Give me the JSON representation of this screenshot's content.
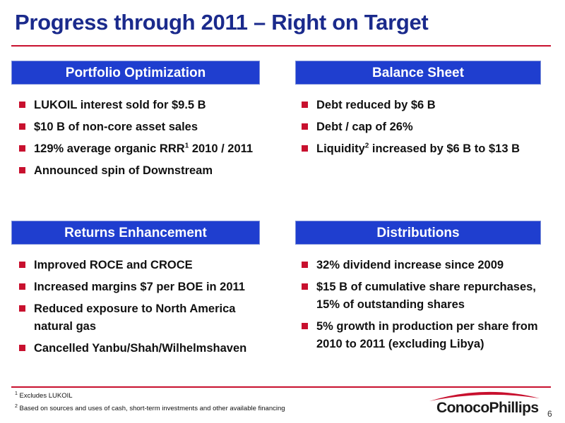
{
  "slide": {
    "title": "Progress through 2011 – Right on Target",
    "page_number": "6",
    "accent_color": "#c8102e",
    "header_color": "#1f3ecf"
  },
  "panels": {
    "portfolio": {
      "header": "Portfolio Optimization",
      "items": [
        {
          "text": "LUKOIL interest sold for $9.5 B"
        },
        {
          "text": "$10 B of non-core asset sales"
        },
        {
          "pre": "129% average organic RRR",
          "sup": "1",
          "post": " 2010 / 2011"
        },
        {
          "text": "Announced spin of Downstream"
        }
      ]
    },
    "balance": {
      "header": "Balance Sheet",
      "items": [
        {
          "text": "Debt reduced by $6 B"
        },
        {
          "text": "Debt / cap of 26%"
        },
        {
          "pre": "Liquidity",
          "sup": "2",
          "post": " increased by $6 B to $13 B"
        }
      ]
    },
    "returns": {
      "header": "Returns Enhancement",
      "items": [
        {
          "text": "Improved ROCE and CROCE"
        },
        {
          "text": "Increased margins $7 per BOE in 2011"
        },
        {
          "text": "Reduced exposure to North America natural gas"
        },
        {
          "text": "Cancelled Yanbu/Shah/Wilhelmshaven"
        }
      ]
    },
    "distributions": {
      "header": "Distributions",
      "items": [
        {
          "text": "32% dividend increase since 2009"
        },
        {
          "text": "$15 B of cumulative share repurchases, 15% of outstanding shares"
        },
        {
          "text": "5% growth in production per share from 2010 to 2011 (excluding Libya)"
        }
      ]
    }
  },
  "footnotes": [
    {
      "num": "1",
      "text": " Excludes LUKOIL"
    },
    {
      "num": "2",
      "text": " Based on sources and uses of cash, short-term investments and other available financing"
    }
  ],
  "logo": {
    "name": "ConocoPhillips",
    "icon": "conocophillips-logo-arc"
  }
}
